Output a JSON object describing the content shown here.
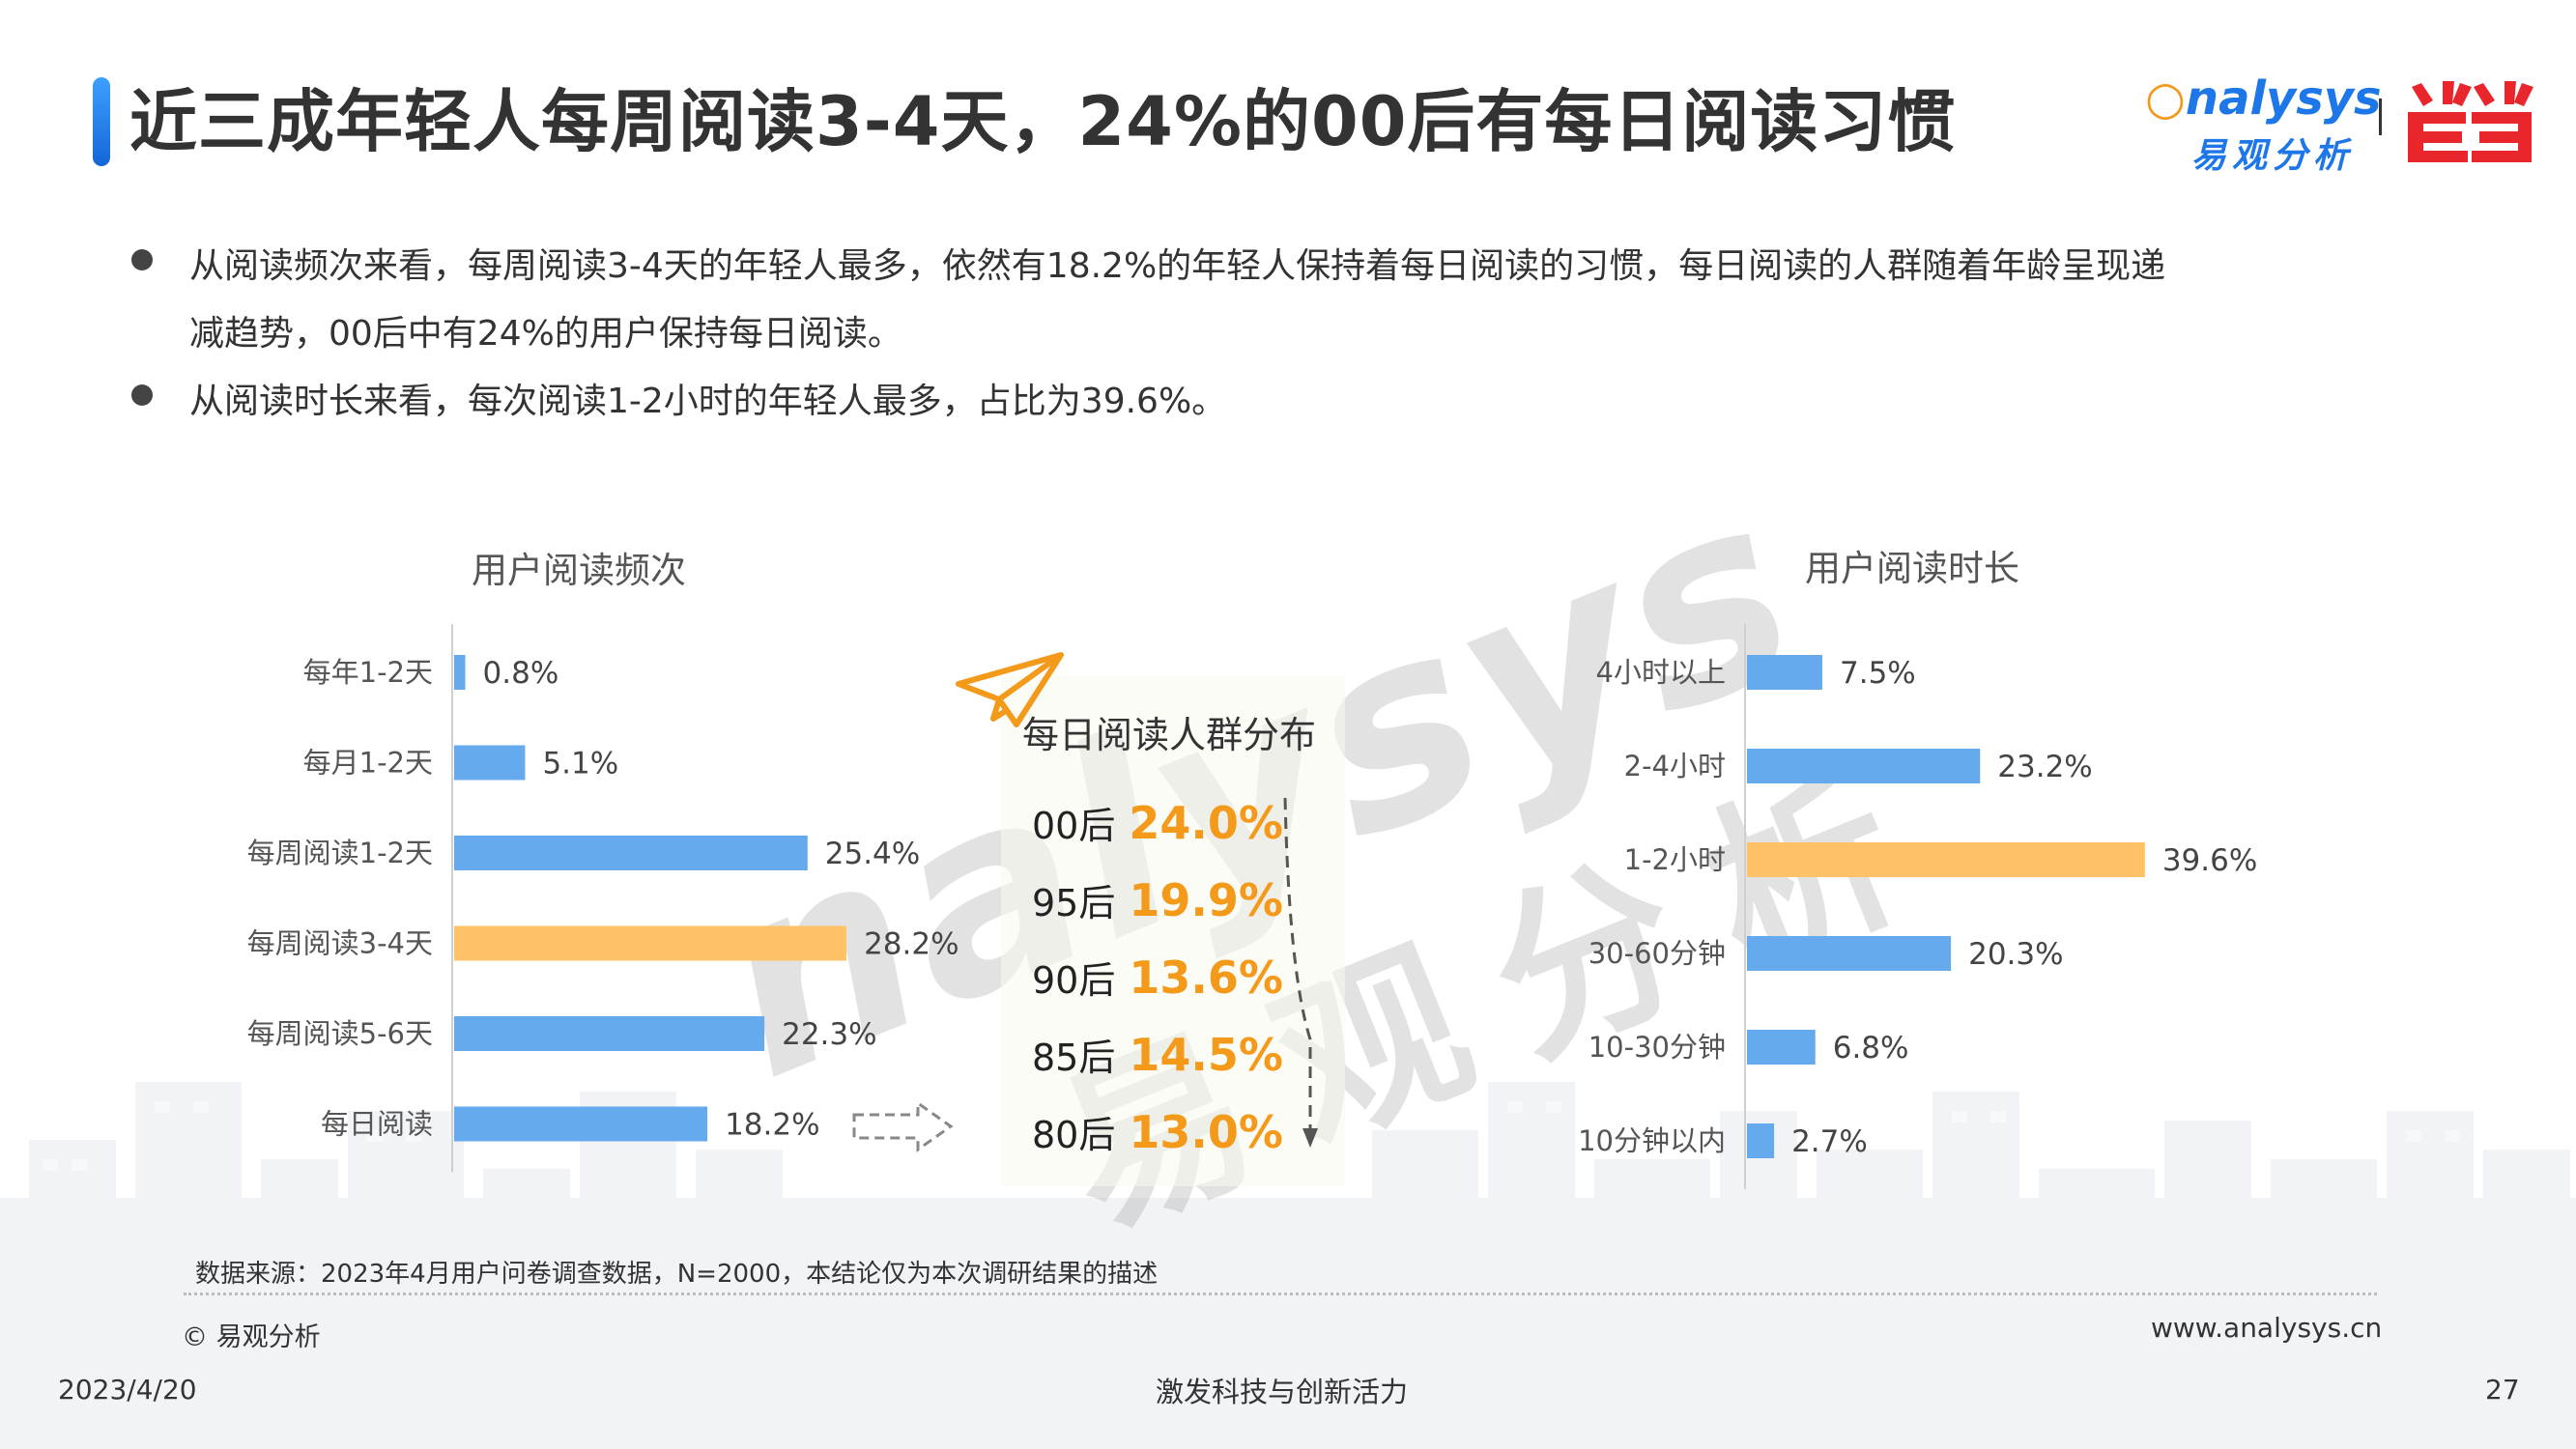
{
  "header": {
    "title": "近三成年轻人每周阅读3-4天，24%的00后有每日阅读习惯",
    "logo_analysys_en": "nalysys",
    "logo_analysys_cn": "易观分析",
    "logo_dangdang": "当当"
  },
  "bullets": [
    {
      "line1": "从阅读频次来看，每周阅读3-4天的年轻人最多，依然有18.2%的年轻人保持着每日阅读的习惯，每日阅读的人群随着年龄呈现递",
      "line2": "减趋势，00后中有24%的用户保持每日阅读。"
    },
    {
      "line1": "从阅读时长来看，每次阅读1-2小时的年轻人最多，占比为39.6%。",
      "line2": ""
    }
  ],
  "watermark": {
    "en": "nalysys",
    "cn": "易观分析"
  },
  "colors": {
    "bar_blue": "#66aaee",
    "bar_orange": "#ffc266",
    "accent_orange": "#f39a1b",
    "title_bar": "#1d77e8"
  },
  "chart_data": [
    {
      "type": "bar",
      "orientation": "horizontal",
      "title": "用户阅读频次",
      "categories": [
        "每年1-2天",
        "每月1-2天",
        "每周阅读1-2天",
        "每周阅读3-4天",
        "每周阅读5-6天",
        "每日阅读"
      ],
      "values": [
        0.8,
        5.1,
        25.4,
        28.2,
        22.3,
        18.2
      ],
      "value_labels": [
        "0.8%",
        "5.1%",
        "25.4%",
        "28.2%",
        "22.3%",
        "18.2%"
      ],
      "highlight_index": 3,
      "unit": "%"
    },
    {
      "type": "table",
      "title": "每日阅读人群分布",
      "rows": [
        {
          "label": "00后",
          "value": 24.0,
          "text": "24.0%"
        },
        {
          "label": "95后",
          "value": 19.9,
          "text": "19.9%"
        },
        {
          "label": "90后",
          "value": 13.6,
          "text": "13.6%"
        },
        {
          "label": "85后",
          "value": 14.5,
          "text": "14.5%"
        },
        {
          "label": "80后",
          "value": 13.0,
          "text": "13.0%"
        }
      ]
    },
    {
      "type": "bar",
      "orientation": "horizontal",
      "title": "用户阅读时长",
      "categories": [
        "4小时以上",
        "2-4小时",
        "1-2小时",
        "30-60分钟",
        "10-30分钟",
        "10分钟以内"
      ],
      "values": [
        7.5,
        23.2,
        39.6,
        20.3,
        6.8,
        2.7
      ],
      "value_labels": [
        "7.5%",
        "23.2%",
        "39.6%",
        "20.3%",
        "6.8%",
        "2.7%"
      ],
      "highlight_index": 2,
      "unit": "%"
    }
  ],
  "footer": {
    "source": "数据来源：2023年4月用户问卷调查数据，N=2000，本结论仅为本次调研结果的描述",
    "copyright": "© 易观分析",
    "url": "www.analysys.cn",
    "date": "2023/4/20",
    "slogan": "激发科技与创新活力",
    "page": "27"
  }
}
